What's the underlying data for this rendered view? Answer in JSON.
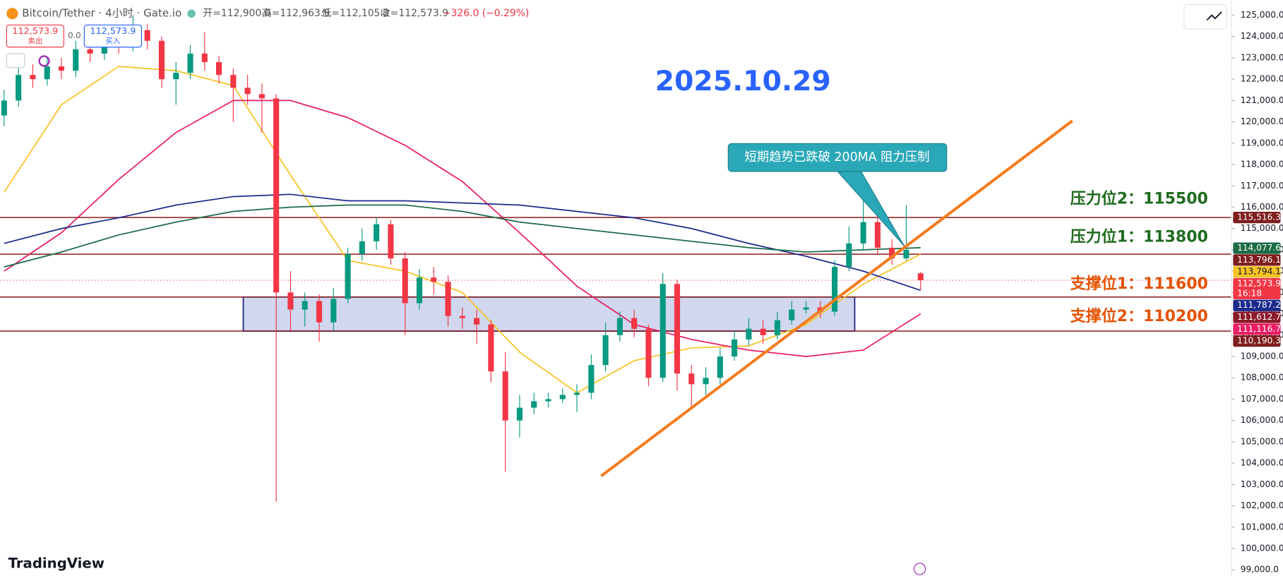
{
  "chart_data": {
    "type": "candlestick",
    "title": "2025.10.29",
    "symbol": "Bitcoin/Tether · 4小时 · Gate.io",
    "ohlc_header": [
      "开=112,900.0",
      "高=112,963.9",
      "低=112,105.2",
      "收=112,573.9",
      "−326.0 (−0.29%)"
    ],
    "up_color": "#089981",
    "down_color": "#f23645",
    "open": [
      120300,
      121000,
      122200,
      122000,
      122600,
      122400,
      123400,
      123200,
      123800,
      123600,
      124300,
      123800,
      122000,
      122300,
      123200,
      122800,
      122200,
      121600,
      121300,
      121100,
      112000,
      111200,
      111600,
      110600,
      111700,
      113800,
      114400,
      115200,
      113600,
      111500,
      112700,
      112500,
      110900,
      110800,
      110500,
      108300,
      106000,
      106600,
      106900,
      107000,
      107200,
      107300,
      108600,
      110000,
      110800,
      110300,
      108000,
      112400,
      108200,
      107700,
      108000,
      109000,
      109800,
      110300,
      110000,
      110700,
      111200,
      111300,
      111100,
      113200,
      114300,
      115300,
      114100,
      113600,
      112900
    ],
    "high": [
      121500,
      122600,
      122700,
      123000,
      123000,
      123800,
      123900,
      124300,
      124200,
      125000,
      124600,
      124000,
      122800,
      123600,
      124200,
      123100,
      122500,
      122200,
      121800,
      121300,
      113000,
      112000,
      111900,
      112200,
      114100,
      115000,
      115500,
      115400,
      113900,
      113100,
      113200,
      112800,
      111300,
      111200,
      110700,
      109200,
      107200,
      107300,
      107300,
      107500,
      107700,
      109100,
      110600,
      111100,
      111200,
      110500,
      112900,
      112600,
      108600,
      108500,
      109400,
      110200,
      110800,
      110700,
      111100,
      111600,
      111600,
      111600,
      113500,
      115100,
      116300,
      115700,
      114500,
      116100,
      112963.9
    ],
    "low": [
      119800,
      120700,
      121600,
      121700,
      122000,
      122100,
      122800,
      122900,
      123200,
      123300,
      123400,
      121600,
      120800,
      122000,
      122400,
      121800,
      120000,
      120800,
      119500,
      102200,
      110200,
      110400,
      109700,
      110200,
      111500,
      113500,
      114000,
      113300,
      110000,
      111200,
      111900,
      110400,
      110300,
      109600,
      107800,
      103600,
      105200,
      106300,
      106600,
      106800,
      106400,
      107000,
      108300,
      109700,
      109900,
      107600,
      107800,
      107400,
      106600,
      107200,
      107700,
      108800,
      109500,
      109600,
      109800,
      110500,
      111000,
      110800,
      110900,
      113000,
      114000,
      113800,
      113300,
      113500,
      112105.2
    ],
    "close": [
      121000,
      122200,
      122000,
      122600,
      122400,
      123400,
      123200,
      123800,
      123600,
      124300,
      123800,
      122000,
      122300,
      123200,
      122800,
      122200,
      121600,
      121300,
      121100,
      112000,
      111200,
      111600,
      110600,
      111700,
      113800,
      114400,
      115200,
      113600,
      111500,
      112700,
      112500,
      110900,
      110800,
      110500,
      108300,
      106000,
      106600,
      106900,
      107000,
      107200,
      107300,
      108600,
      110000,
      110800,
      110300,
      108000,
      112400,
      108200,
      107700,
      108000,
      109000,
      109800,
      110300,
      110000,
      110700,
      111200,
      111300,
      111100,
      113200,
      114300,
      115300,
      114100,
      113600,
      114000,
      112573.9
    ],
    "xlim": [
      -0.29,
      85.71
    ],
    "ylim": [
      99000,
      125000
    ],
    "yticks": [
      {
        "value": 125000,
        "label": "125,000.0"
      },
      {
        "value": 124000,
        "label": "124,000.0"
      },
      {
        "value": 123000,
        "label": "123,000.0"
      },
      {
        "value": 122000,
        "label": "122,000.0"
      },
      {
        "value": 121000,
        "label": "121,000.0"
      },
      {
        "value": 120000,
        "label": "120,000.0"
      },
      {
        "value": 119000,
        "label": "119,000.0"
      },
      {
        "value": 118000,
        "label": "118,000.0"
      },
      {
        "value": 117000,
        "label": "117,000.0"
      },
      {
        "value": 116000,
        "label": "116,000.0"
      },
      {
        "value": 115000,
        "label": "115,000.0"
      },
      {
        "value": 114000,
        "label": "114,000.0"
      },
      {
        "value": 113000,
        "label": "113,000.0"
      },
      {
        "value": 112000,
        "label": "112,000.0"
      },
      {
        "value": 111000,
        "label": "111,000.0"
      },
      {
        "value": 110000,
        "label": "110,000.0"
      },
      {
        "value": 109000,
        "label": "109,000.0"
      },
      {
        "value": 108000,
        "label": "108,000.0"
      },
      {
        "value": 107000,
        "label": "107,000.0"
      },
      {
        "value": 106000,
        "label": "106,000.0"
      },
      {
        "value": 105000,
        "label": "105,000.0"
      },
      {
        "value": 104000,
        "label": "104,000.0"
      },
      {
        "value": 103000,
        "label": "103,000.0"
      },
      {
        "value": 102000,
        "label": "102,000.0"
      },
      {
        "value": 101000,
        "label": "101,000.0"
      },
      {
        "value": 100000,
        "label": "100,000.0"
      },
      {
        "value": 99000,
        "label": "99,000.0"
      }
    ],
    "moving_averages": [
      {
        "color": "#f7c325",
        "x": [
          0,
          4,
          8,
          12,
          16,
          20,
          24,
          28,
          32,
          36,
          40,
          44,
          48,
          52,
          56,
          60,
          64
        ],
        "values": [
          116700,
          120800,
          122600,
          122400,
          121700,
          117500,
          113500,
          113000,
          112000,
          109200,
          107300,
          108800,
          109400,
          109500,
          110500,
          112400,
          113800
        ]
      },
      {
        "color": "#e91e63",
        "x": [
          0,
          4,
          8,
          12,
          16,
          20,
          24,
          28,
          32,
          36,
          40,
          44,
          48,
          52,
          56,
          60,
          64
        ],
        "values": [
          113000,
          114800,
          117300,
          119500,
          121000,
          121000,
          120200,
          118900,
          117200,
          114800,
          112300,
          110500,
          109800,
          109300,
          109000,
          109300,
          111000
        ]
      },
      {
        "color": "#1a2a8c",
        "x": [
          0,
          4,
          8,
          12,
          16,
          20,
          24,
          28,
          32,
          36,
          40,
          44,
          48,
          52,
          56,
          60,
          64
        ],
        "values": [
          114300,
          115000,
          115500,
          116100,
          116500,
          116600,
          116300,
          116300,
          116200,
          116100,
          115800,
          115500,
          115000,
          114300,
          113700,
          113000,
          112100
        ]
      },
      {
        "color": "#1b6b45",
        "x": [
          0,
          4,
          8,
          12,
          16,
          20,
          24,
          28,
          32,
          36,
          40,
          44,
          48,
          52,
          56,
          60,
          64
        ],
        "values": [
          113200,
          113900,
          114700,
          115300,
          115800,
          116000,
          116100,
          116100,
          115800,
          115300,
          115000,
          114700,
          114400,
          114100,
          113900,
          114000,
          114100
        ]
      }
    ],
    "trendline": {
      "color": "#f57c1f",
      "x": [
        41.7,
        74.6
      ],
      "values": [
        103400,
        120050
      ]
    },
    "levels": [
      {
        "value": 115516.3,
        "color": "#8b1a1a"
      },
      {
        "value": 113796.1,
        "color": "#8b1a1a"
      },
      {
        "value": 111787.2,
        "color": "#8b1a1a"
      },
      {
        "value": 110190.3,
        "color": "#8b1a1a"
      }
    ],
    "current_price": 112573.9,
    "zone": {
      "x": [
        16.7,
        59.4
      ],
      "values": [
        110190.3,
        111787.2
      ],
      "color": "#1a237e"
    },
    "price_tags": [
      {
        "value": 115516.3,
        "label": "115,516.3",
        "color": "#7f1d1d"
      },
      {
        "value": 114077.6,
        "label": "114,077.6",
        "color": "#1b6b45"
      },
      {
        "value": 113796.1,
        "label": "113,796.1",
        "color": "#7f1d1d"
      },
      {
        "value": 113794.1,
        "label": "113,794.1",
        "color": "#f7c325"
      },
      {
        "value": 112573.9,
        "label": "112,573.9",
        "color": "#f23645",
        "countdown": "16:18"
      },
      {
        "value": 111787.2,
        "label": "111,787.2",
        "color": "#1a2a8c"
      },
      {
        "value": 111612.7,
        "label": "111,612.7",
        "color": "#8b1a2a"
      },
      {
        "value": 111116.7,
        "label": "111,116.7",
        "color": "#e91e63"
      },
      {
        "value": 110190.3,
        "label": "110,190.3",
        "color": "#7f1d1d"
      }
    ],
    "annotation": "短期趋势已跌破 200MA 阻力压制",
    "level_labels": [
      {
        "text": "压力位2：115500",
        "color": "#1e6b1e"
      },
      {
        "text": "压力位1：113800",
        "color": "#1e6b1e"
      },
      {
        "text": "支撑位1：111600",
        "color": "#e65100"
      },
      {
        "text": "支撑位2：110200",
        "color": "#e65100"
      }
    ]
  },
  "ui": {
    "sell_price": "112,573.9",
    "sell_label": "卖出",
    "spread": "0.0",
    "buy_price": "112,573.9",
    "buy_label": "买入",
    "brand": "TradingView"
  }
}
